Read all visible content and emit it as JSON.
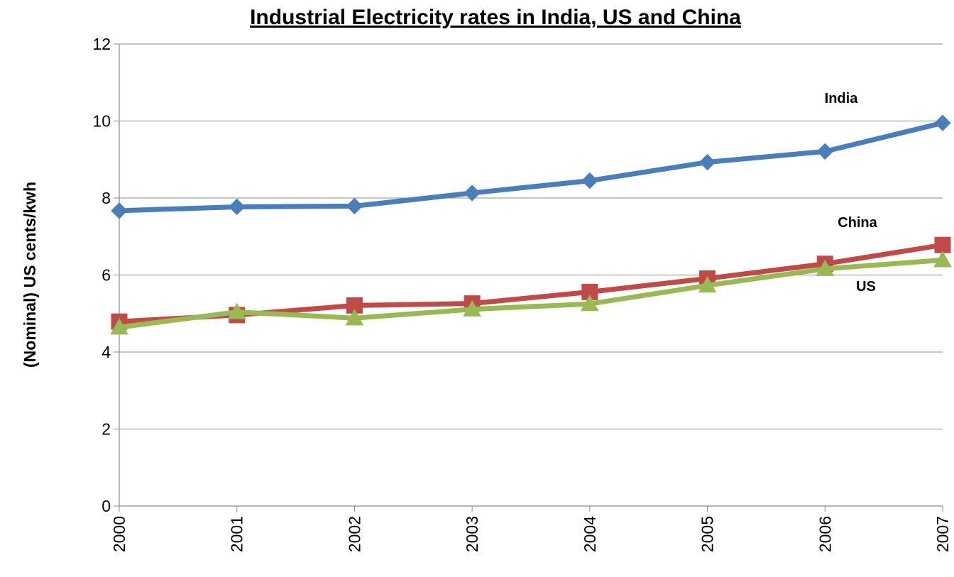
{
  "chart_data": {
    "type": "line",
    "title": "Industrial Electricity rates in India, US and China",
    "xlabel": "",
    "ylabel": "(Nominal) US cents/kwh",
    "categories": [
      "2000",
      "2001",
      "2002",
      "2003",
      "2004",
      "2005",
      "2006",
      "2007"
    ],
    "ylim": [
      0,
      12
    ],
    "yticks": [
      "0",
      "2",
      "4",
      "6",
      "8",
      "10",
      "12"
    ],
    "grid": true,
    "legend": "none",
    "series": [
      {
        "name": "India",
        "color": "#4a7ebb",
        "marker": "diamond",
        "values": [
          7.67,
          7.77,
          7.79,
          8.13,
          8.45,
          8.93,
          9.21,
          9.95
        ]
      },
      {
        "name": "China",
        "color": "#be4b48",
        "marker": "square",
        "values": [
          4.79,
          4.96,
          5.21,
          5.26,
          5.56,
          5.91,
          6.29,
          6.78
        ]
      },
      {
        "name": "US",
        "color": "#98b954",
        "marker": "triangle",
        "values": [
          4.64,
          5.04,
          4.88,
          5.11,
          5.25,
          5.73,
          6.16,
          6.39
        ]
      }
    ]
  }
}
